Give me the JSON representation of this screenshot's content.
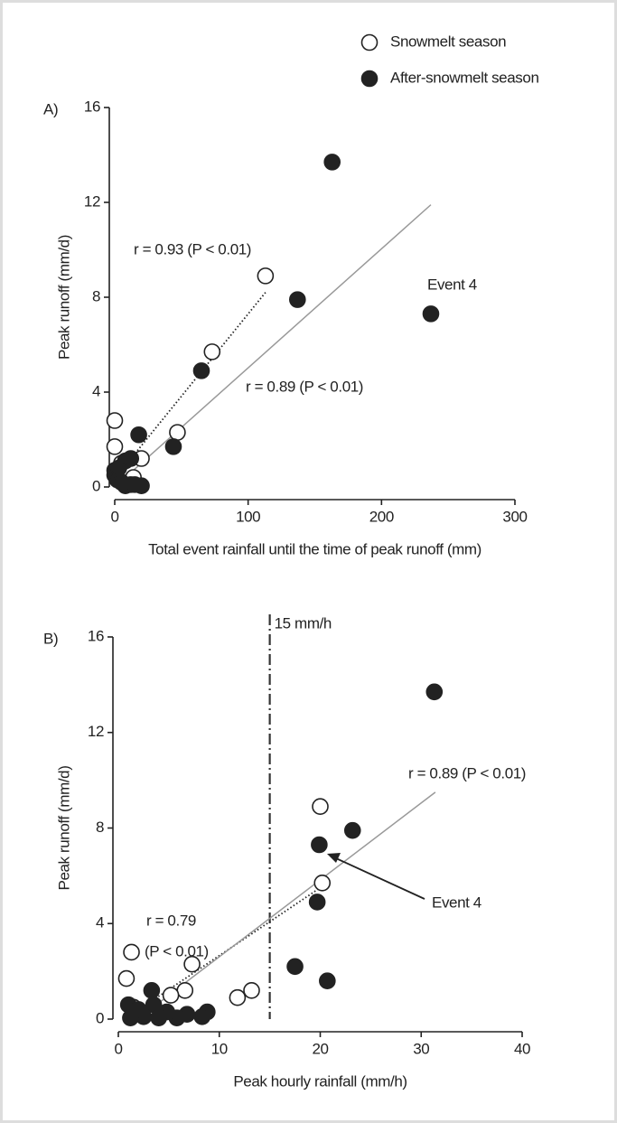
{
  "chart_data": [
    {
      "type": "scatter",
      "panel_label": "A)",
      "xlabel": "Total event rainfall until the time of peak runoff (mm)",
      "ylabel": "Peak runoff (mm/d)",
      "xlim": [
        0,
        300
      ],
      "ylim": [
        0,
        16
      ],
      "xticks": [
        0,
        100,
        200,
        300
      ],
      "yticks": [
        0,
        4,
        8,
        12,
        16
      ],
      "series": [
        {
          "name": "Snowmelt season",
          "marker": "open",
          "color": "#222",
          "x": [
            0,
            0,
            113,
            73,
            47,
            20,
            5,
            14,
            3
          ],
          "values": [
            2.8,
            1.7,
            8.9,
            5.7,
            2.3,
            1.2,
            1.0,
            0.4,
            0.3
          ]
        },
        {
          "name": "After-snowmelt season",
          "marker": "filled",
          "color": "#222",
          "x": [
            163,
            137,
            237,
            65,
            44,
            18,
            12,
            8,
            20,
            12,
            0,
            0,
            2,
            5,
            8,
            3,
            15
          ],
          "values": [
            13.7,
            7.9,
            7.3,
            4.9,
            1.7,
            2.2,
            1.2,
            1.1,
            0.05,
            0.1,
            0.7,
            0.5,
            0.3,
            0.2,
            0.05,
            0.8,
            0.1
          ]
        }
      ],
      "fits": [
        {
          "style": "dotted",
          "color": "#222",
          "x": [
            5,
            113
          ],
          "values": [
            0.7,
            8.2
          ]
        },
        {
          "style": "solid",
          "color": "#999",
          "x": [
            0,
            237
          ],
          "values": [
            0,
            11.9
          ]
        }
      ],
      "annotations": [
        "r = 0.93 (P < 0.01)",
        "r = 0.89 (P < 0.01)",
        "Event 4"
      ]
    },
    {
      "type": "scatter",
      "panel_label": "B)",
      "xlabel": "Peak hourly rainfall (mm/h)",
      "ylabel": "Peak runoff (mm/d)",
      "xlim": [
        0,
        40
      ],
      "ylim": [
        0,
        16
      ],
      "xticks": [
        0,
        10,
        20,
        30,
        40
      ],
      "yticks": [
        0,
        4,
        8,
        12,
        16
      ],
      "series": [
        {
          "marker": "open",
          "color": "#222",
          "x": [
            1.3,
            0.8,
            7.3,
            6.6,
            5.2,
            11.8,
            13.2,
            20,
            20.2,
            2,
            1.5
          ],
          "values": [
            2.8,
            1.7,
            2.3,
            1.2,
            1.0,
            0.9,
            1.2,
            8.9,
            5.7,
            0.3,
            0.5
          ]
        },
        {
          "marker": "filled",
          "color": "#222",
          "x": [
            31.3,
            23.2,
            19.9,
            19.7,
            17.5,
            20.7,
            3.3,
            8.8,
            8.3,
            6.8,
            5.8,
            4.8,
            3.5,
            1,
            1.5,
            2.5,
            4,
            1.2,
            2
          ],
          "values": [
            13.7,
            7.9,
            7.3,
            4.9,
            2.2,
            1.6,
            1.2,
            0.3,
            0.1,
            0.2,
            0.05,
            0.3,
            0.6,
            0.6,
            0.3,
            0.1,
            0.05,
            0.05,
            0.4
          ]
        }
      ],
      "fits": [
        {
          "style": "dotted",
          "color": "#222",
          "x": [
            1,
            20
          ],
          "values": [
            0.1,
            5.5
          ]
        },
        {
          "style": "solid",
          "color": "#999",
          "x": [
            1.9,
            31.4
          ],
          "values": [
            0,
            9.5
          ]
        }
      ],
      "vline": 15,
      "vline_label": "15 mm/h",
      "annotations": [
        "r = 0.79",
        "(P < 0.01)",
        "r = 0.89 (P < 0.01)",
        "Event 4"
      ]
    }
  ]
}
